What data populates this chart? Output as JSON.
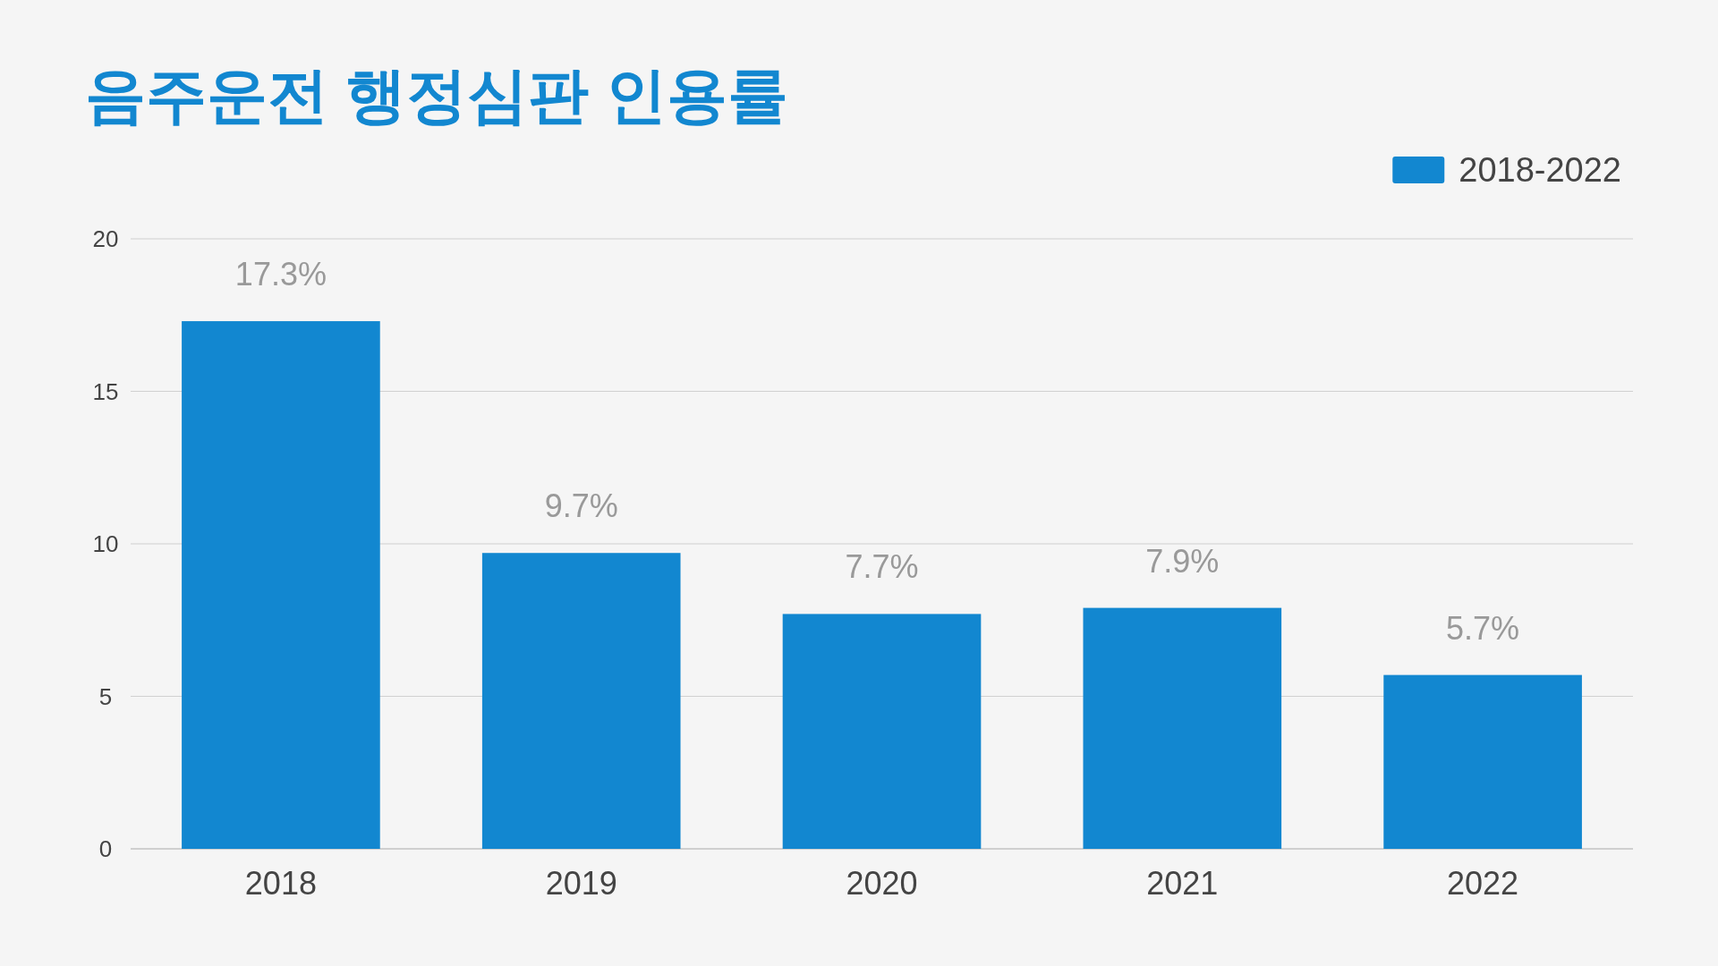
{
  "chart_data": {
    "type": "bar",
    "title": "음주운전 행정심판 인용률",
    "categories": [
      "2018",
      "2019",
      "2020",
      "2021",
      "2022"
    ],
    "series": [
      {
        "name": "2018-2022",
        "color": "#1287d0",
        "values": [
          17.3,
          9.7,
          7.7,
          7.9,
          5.7
        ]
      }
    ],
    "value_labels": [
      "17.3%",
      "9.7%",
      "7.7%",
      "7.9%",
      "5.7%"
    ],
    "ylim": [
      0,
      20
    ],
    "yticks": [
      0,
      5,
      10,
      15,
      20
    ],
    "grid": "y",
    "legend": "top right"
  }
}
